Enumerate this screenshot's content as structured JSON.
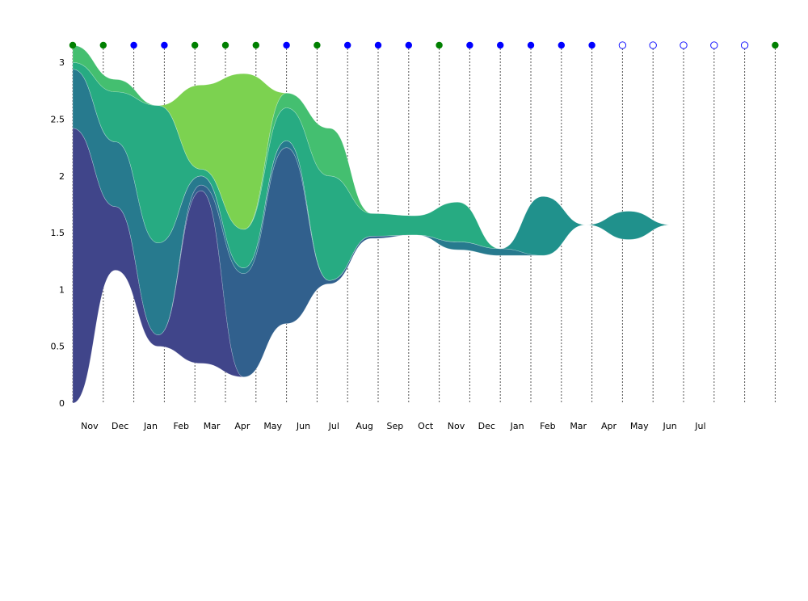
{
  "chart_data": {
    "type": "area",
    "subtype": "streamgraph",
    "title": "",
    "xlabel": "",
    "ylabel": "",
    "ylim": [
      0,
      3.15
    ],
    "y_ticks": [
      "0",
      "0.5",
      "1",
      "1.5",
      "2",
      "2.5",
      "3"
    ],
    "x_tick_labels": [
      "Nov",
      "Dec",
      "Jan",
      "Feb",
      "Mar",
      "Apr",
      "May",
      "Jun",
      "Jul",
      "Aug",
      "Sep",
      "Oct",
      "Nov",
      "Dec",
      "Jan",
      "Feb",
      "Mar",
      "Apr",
      "May",
      "Jun",
      "Jul"
    ],
    "grid": "vertical dotted lines at each month boundary",
    "colormap": "viridis",
    "month_markers": [
      {
        "status": "filled",
        "color": "#008000"
      },
      {
        "status": "filled",
        "color": "#008000"
      },
      {
        "status": "filled",
        "color": "#0000ff"
      },
      {
        "status": "filled",
        "color": "#0000ff"
      },
      {
        "status": "filled",
        "color": "#008000"
      },
      {
        "status": "filled",
        "color": "#008000"
      },
      {
        "status": "filled",
        "color": "#008000"
      },
      {
        "status": "filled",
        "color": "#0000ff"
      },
      {
        "status": "filled",
        "color": "#008000"
      },
      {
        "status": "filled",
        "color": "#0000ff"
      },
      {
        "status": "filled",
        "color": "#0000ff"
      },
      {
        "status": "filled",
        "color": "#0000ff"
      },
      {
        "status": "filled",
        "color": "#008000"
      },
      {
        "status": "filled",
        "color": "#0000ff"
      },
      {
        "status": "filled",
        "color": "#0000ff"
      },
      {
        "status": "filled",
        "color": "#0000ff"
      },
      {
        "status": "filled",
        "color": "#0000ff"
      },
      {
        "status": "filled",
        "color": "#0000ff"
      },
      {
        "status": "open",
        "color": "#0000ff"
      },
      {
        "status": "open",
        "color": "#0000ff"
      },
      {
        "status": "open",
        "color": "#0000ff"
      },
      {
        "status": "open",
        "color": "#0000ff"
      },
      {
        "status": "open",
        "color": "#0000ff"
      },
      {
        "status": "filled",
        "color": "#008000"
      }
    ],
    "baseline": [
      0,
      1.17,
      0.5,
      0.35,
      0.23,
      0.7,
      1.05,
      1.45,
      1.48,
      1.35,
      1.3,
      1.3,
      1.57,
      1.44,
      1.57
    ],
    "series": [
      {
        "color": "#472374",
        "values": [
          0,
          0.0,
          0.0,
          0.0,
          0.0,
          0.0,
          0.0,
          0.0,
          0.0,
          0.0,
          0.0,
          0.0,
          0.0,
          0.0,
          0.0
        ]
      },
      {
        "color": "#40458a",
        "values": [
          2.42,
          0.56,
          0.1,
          1.52,
          0.0,
          0.0,
          0.0,
          0.0,
          0.0,
          0.0,
          0.0,
          0.0,
          0.0,
          0.0,
          0.0
        ]
      },
      {
        "color": "#31608d",
        "values": [
          0.0,
          0.0,
          0.0,
          0.05,
          0.91,
          1.55,
          0.03,
          0.02,
          0.0,
          0.0,
          0.0,
          0.0,
          0.0,
          0.0,
          0.0
        ]
      },
      {
        "color": "#277a8e",
        "values": [
          0.52,
          0.57,
          0.81,
          0.08,
          0.05,
          0.06,
          0.0,
          0.0,
          0.0,
          0.07,
          0.06,
          0.0,
          0.0,
          0.0,
          0.0
        ]
      },
      {
        "color": "#20918c",
        "values": [
          0.0,
          0.0,
          0.0,
          0.0,
          0.0,
          0.0,
          0.0,
          0.0,
          0.0,
          0.0,
          0.0,
          0.52,
          0.0,
          0.25,
          0.0
        ]
      },
      {
        "color": "#27ab82",
        "values": [
          0.06,
          0.44,
          1.21,
          0.06,
          0.34,
          0.29,
          0.92,
          0.2,
          0.17,
          0.35,
          0.0,
          0.0,
          0.0,
          0.0,
          0.0
        ]
      },
      {
        "color": "#44bf70",
        "values": [
          0.15,
          0.11,
          0.0,
          0.0,
          0.0,
          0.13,
          0.42,
          0.0,
          0.0,
          0.0,
          0.0,
          0.0,
          0.0,
          0.0,
          0.0
        ]
      },
      {
        "color": "#7cd250",
        "values": [
          0.0,
          0.0,
          0.0,
          0.74,
          1.37,
          0.0,
          0.0,
          0.0,
          0.0,
          0.0,
          0.0,
          0.0,
          0.0,
          0.0,
          0.0
        ]
      }
    ]
  }
}
